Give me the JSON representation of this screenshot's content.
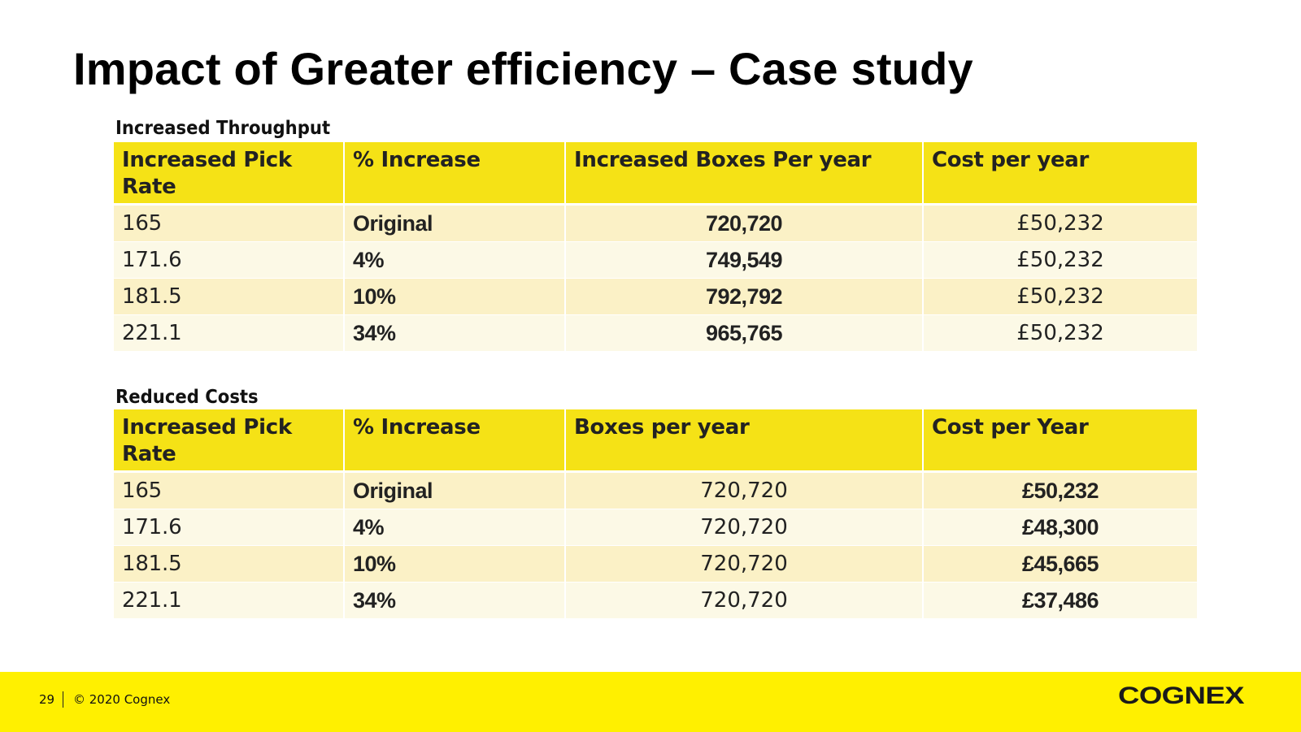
{
  "title": "Impact of Greater efficiency – Case study",
  "throughput": {
    "label": "Increased Throughput",
    "headers": [
      "Increased Pick Rate",
      "% Increase",
      "Increased Boxes Per year",
      "Cost per year"
    ],
    "rows": [
      {
        "rate": "165",
        "pct": "Original",
        "boxes": "720,720",
        "cost": "£50,232"
      },
      {
        "rate": "171.6",
        "pct": "4%",
        "boxes": "749,549",
        "cost": "£50,232"
      },
      {
        "rate": "181.5",
        "pct": "10%",
        "boxes": "792,792",
        "cost": "£50,232"
      },
      {
        "rate": "221.1",
        "pct": "34%",
        "boxes": "965,765",
        "cost": "£50,232"
      }
    ]
  },
  "costs": {
    "label": "Reduced Costs",
    "headers": [
      "Increased Pick Rate",
      "% Increase",
      "Boxes per year",
      "Cost per Year"
    ],
    "rows": [
      {
        "rate": "165",
        "pct": "Original",
        "boxes": "720,720",
        "cost": "£50,232"
      },
      {
        "rate": "171.6",
        "pct": "4%",
        "boxes": "720,720",
        "cost": "£48,300"
      },
      {
        "rate": "181.5",
        "pct": "10%",
        "boxes": "720,720",
        "cost": "£45,665"
      },
      {
        "rate": "221.1",
        "pct": "34%",
        "boxes": "720,720",
        "cost": "£37,486"
      }
    ]
  },
  "footer": {
    "page_number": "29",
    "copyright": "© 2020 Cognex",
    "logo": "COGNEX"
  },
  "colors": {
    "header_yellow": "#f5e216",
    "footer_yellow": "#fff000",
    "row_odd": "#fbf1c6",
    "row_even": "#fcf9e6"
  }
}
